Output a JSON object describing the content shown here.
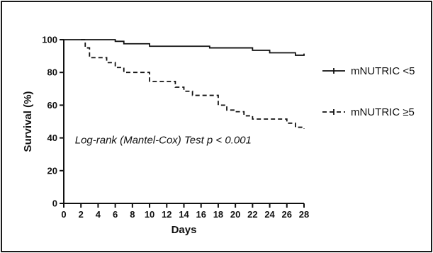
{
  "chart_data": {
    "type": "line",
    "step": true,
    "title": "",
    "xlabel": "Days",
    "ylabel": "Survival (%)",
    "xlim": [
      0,
      28
    ],
    "ylim": [
      0,
      100
    ],
    "x_ticks": [
      "0",
      "2",
      "4",
      "6",
      "8",
      "10",
      "12",
      "14",
      "16",
      "18",
      "20",
      "22",
      "24",
      "26",
      "28"
    ],
    "y_ticks": [
      "0",
      "20",
      "40",
      "60",
      "80",
      "100"
    ],
    "grid": false,
    "legend_position": "right",
    "annotation": "Log-rank (Mantel-Cox) Test p < 0.001",
    "series": [
      {
        "name": "mNUTRIC <5",
        "line_style": "solid",
        "color": "#111111",
        "x": [
          0,
          6,
          7,
          10,
          17,
          22,
          24,
          27,
          28
        ],
        "y": [
          100,
          99,
          97.5,
          96,
          95,
          93.5,
          92,
          90.5,
          91.5
        ]
      },
      {
        "name": "mNUTRIC ≥5",
        "line_style": "dashed",
        "color": "#111111",
        "x": [
          2,
          2.5,
          3,
          5,
          6,
          7,
          10,
          13,
          14,
          15,
          18,
          19,
          20,
          21,
          22,
          26,
          27,
          28
        ],
        "y": [
          100,
          95,
          89,
          86,
          83,
          80,
          74.5,
          71,
          68.5,
          66,
          60,
          57,
          56,
          53.5,
          51.5,
          49,
          46.5,
          45.5
        ]
      }
    ]
  }
}
